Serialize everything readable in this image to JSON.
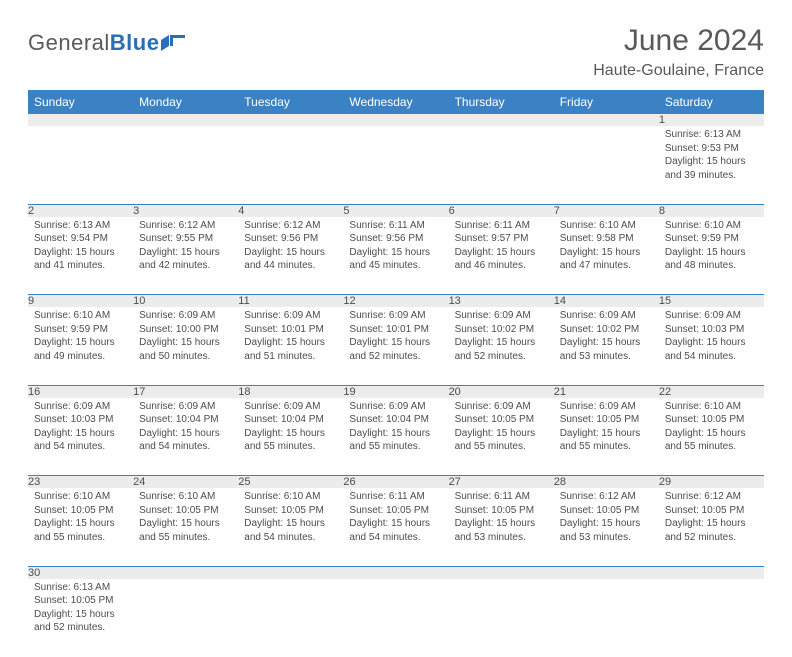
{
  "brand": {
    "part1": "General",
    "part2": "Blue"
  },
  "title": "June 2024",
  "location": "Haute-Goulaine, France",
  "colors": {
    "header_bg": "#3b82c4",
    "header_fg": "#ffffff",
    "daynum_bg": "#ececec",
    "row_border": "#3b82c4",
    "text": "#4d4d4d",
    "title": "#595959"
  },
  "weekdays": [
    "Sunday",
    "Monday",
    "Tuesday",
    "Wednesday",
    "Thursday",
    "Friday",
    "Saturday"
  ],
  "weeks": [
    {
      "numbers": [
        "",
        "",
        "",
        "",
        "",
        "",
        "1"
      ],
      "cells": [
        null,
        null,
        null,
        null,
        null,
        null,
        {
          "sunrise": "Sunrise: 6:13 AM",
          "sunset": "Sunset: 9:53 PM",
          "daylight": "Daylight: 15 hours and 39 minutes."
        }
      ]
    },
    {
      "numbers": [
        "2",
        "3",
        "4",
        "5",
        "6",
        "7",
        "8"
      ],
      "cells": [
        {
          "sunrise": "Sunrise: 6:13 AM",
          "sunset": "Sunset: 9:54 PM",
          "daylight": "Daylight: 15 hours and 41 minutes."
        },
        {
          "sunrise": "Sunrise: 6:12 AM",
          "sunset": "Sunset: 9:55 PM",
          "daylight": "Daylight: 15 hours and 42 minutes."
        },
        {
          "sunrise": "Sunrise: 6:12 AM",
          "sunset": "Sunset: 9:56 PM",
          "daylight": "Daylight: 15 hours and 44 minutes."
        },
        {
          "sunrise": "Sunrise: 6:11 AM",
          "sunset": "Sunset: 9:56 PM",
          "daylight": "Daylight: 15 hours and 45 minutes."
        },
        {
          "sunrise": "Sunrise: 6:11 AM",
          "sunset": "Sunset: 9:57 PM",
          "daylight": "Daylight: 15 hours and 46 minutes."
        },
        {
          "sunrise": "Sunrise: 6:10 AM",
          "sunset": "Sunset: 9:58 PM",
          "daylight": "Daylight: 15 hours and 47 minutes."
        },
        {
          "sunrise": "Sunrise: 6:10 AM",
          "sunset": "Sunset: 9:59 PM",
          "daylight": "Daylight: 15 hours and 48 minutes."
        }
      ]
    },
    {
      "numbers": [
        "9",
        "10",
        "11",
        "12",
        "13",
        "14",
        "15"
      ],
      "cells": [
        {
          "sunrise": "Sunrise: 6:10 AM",
          "sunset": "Sunset: 9:59 PM",
          "daylight": "Daylight: 15 hours and 49 minutes."
        },
        {
          "sunrise": "Sunrise: 6:09 AM",
          "sunset": "Sunset: 10:00 PM",
          "daylight": "Daylight: 15 hours and 50 minutes."
        },
        {
          "sunrise": "Sunrise: 6:09 AM",
          "sunset": "Sunset: 10:01 PM",
          "daylight": "Daylight: 15 hours and 51 minutes."
        },
        {
          "sunrise": "Sunrise: 6:09 AM",
          "sunset": "Sunset: 10:01 PM",
          "daylight": "Daylight: 15 hours and 52 minutes."
        },
        {
          "sunrise": "Sunrise: 6:09 AM",
          "sunset": "Sunset: 10:02 PM",
          "daylight": "Daylight: 15 hours and 52 minutes."
        },
        {
          "sunrise": "Sunrise: 6:09 AM",
          "sunset": "Sunset: 10:02 PM",
          "daylight": "Daylight: 15 hours and 53 minutes."
        },
        {
          "sunrise": "Sunrise: 6:09 AM",
          "sunset": "Sunset: 10:03 PM",
          "daylight": "Daylight: 15 hours and 54 minutes."
        }
      ]
    },
    {
      "numbers": [
        "16",
        "17",
        "18",
        "19",
        "20",
        "21",
        "22"
      ],
      "cells": [
        {
          "sunrise": "Sunrise: 6:09 AM",
          "sunset": "Sunset: 10:03 PM",
          "daylight": "Daylight: 15 hours and 54 minutes."
        },
        {
          "sunrise": "Sunrise: 6:09 AM",
          "sunset": "Sunset: 10:04 PM",
          "daylight": "Daylight: 15 hours and 54 minutes."
        },
        {
          "sunrise": "Sunrise: 6:09 AM",
          "sunset": "Sunset: 10:04 PM",
          "daylight": "Daylight: 15 hours and 55 minutes."
        },
        {
          "sunrise": "Sunrise: 6:09 AM",
          "sunset": "Sunset: 10:04 PM",
          "daylight": "Daylight: 15 hours and 55 minutes."
        },
        {
          "sunrise": "Sunrise: 6:09 AM",
          "sunset": "Sunset: 10:05 PM",
          "daylight": "Daylight: 15 hours and 55 minutes."
        },
        {
          "sunrise": "Sunrise: 6:09 AM",
          "sunset": "Sunset: 10:05 PM",
          "daylight": "Daylight: 15 hours and 55 minutes."
        },
        {
          "sunrise": "Sunrise: 6:10 AM",
          "sunset": "Sunset: 10:05 PM",
          "daylight": "Daylight: 15 hours and 55 minutes."
        }
      ]
    },
    {
      "numbers": [
        "23",
        "24",
        "25",
        "26",
        "27",
        "28",
        "29"
      ],
      "cells": [
        {
          "sunrise": "Sunrise: 6:10 AM",
          "sunset": "Sunset: 10:05 PM",
          "daylight": "Daylight: 15 hours and 55 minutes."
        },
        {
          "sunrise": "Sunrise: 6:10 AM",
          "sunset": "Sunset: 10:05 PM",
          "daylight": "Daylight: 15 hours and 55 minutes."
        },
        {
          "sunrise": "Sunrise: 6:10 AM",
          "sunset": "Sunset: 10:05 PM",
          "daylight": "Daylight: 15 hours and 54 minutes."
        },
        {
          "sunrise": "Sunrise: 6:11 AM",
          "sunset": "Sunset: 10:05 PM",
          "daylight": "Daylight: 15 hours and 54 minutes."
        },
        {
          "sunrise": "Sunrise: 6:11 AM",
          "sunset": "Sunset: 10:05 PM",
          "daylight": "Daylight: 15 hours and 53 minutes."
        },
        {
          "sunrise": "Sunrise: 6:12 AM",
          "sunset": "Sunset: 10:05 PM",
          "daylight": "Daylight: 15 hours and 53 minutes."
        },
        {
          "sunrise": "Sunrise: 6:12 AM",
          "sunset": "Sunset: 10:05 PM",
          "daylight": "Daylight: 15 hours and 52 minutes."
        }
      ]
    },
    {
      "numbers": [
        "30",
        "",
        "",
        "",
        "",
        "",
        ""
      ],
      "cells": [
        {
          "sunrise": "Sunrise: 6:13 AM",
          "sunset": "Sunset: 10:05 PM",
          "daylight": "Daylight: 15 hours and 52 minutes."
        },
        null,
        null,
        null,
        null,
        null,
        null
      ]
    }
  ]
}
